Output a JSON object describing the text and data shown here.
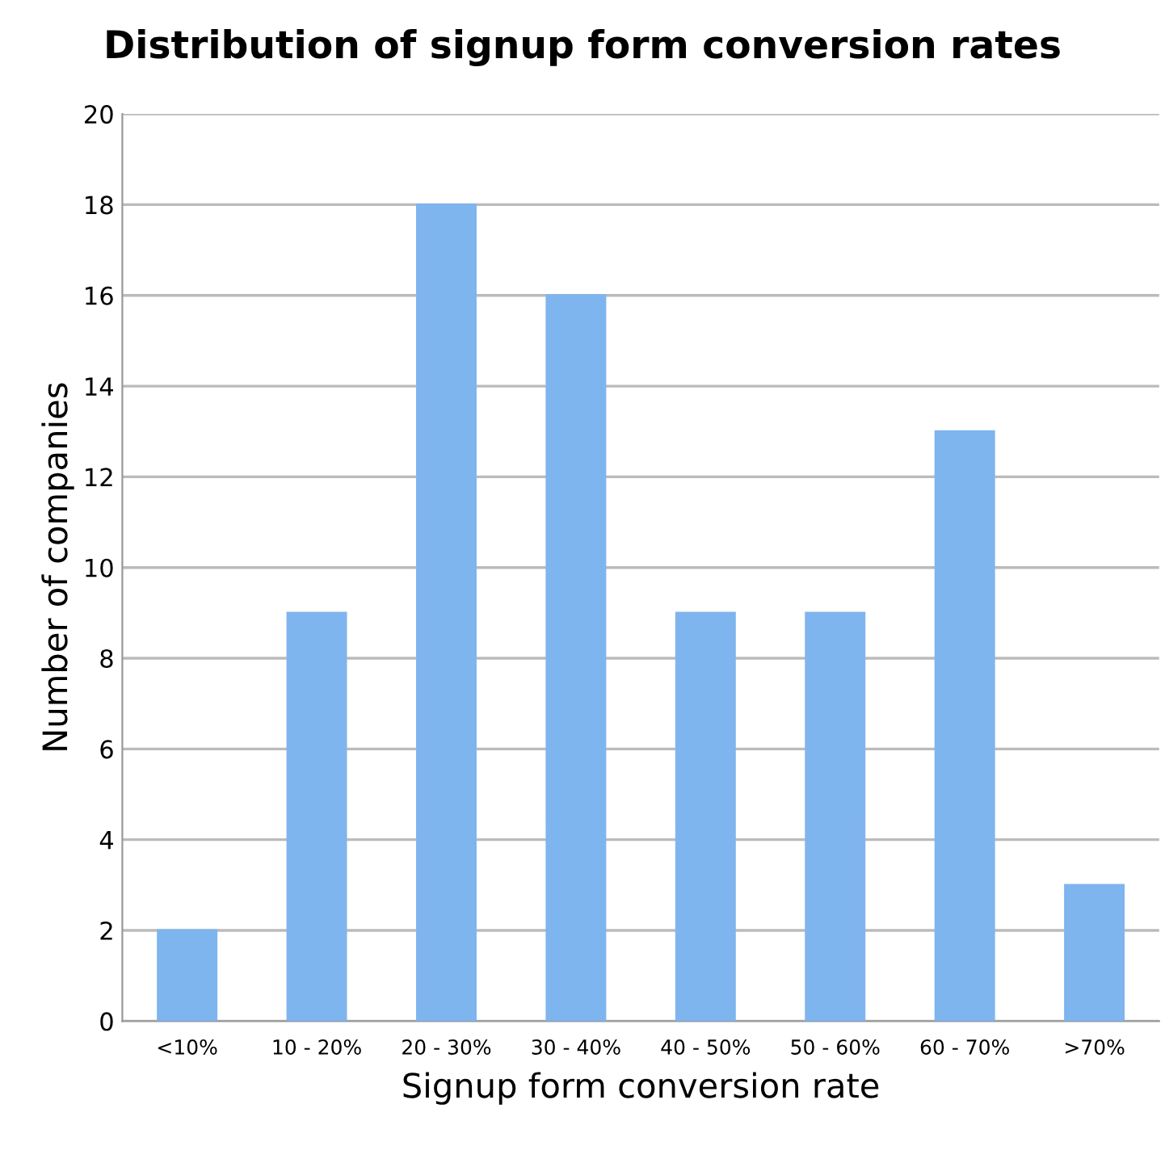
{
  "chart_data": {
    "type": "bar",
    "title": "Distribution of signup form conversion rates",
    "xlabel": "Signup form conversion rate",
    "ylabel": "Number of companies",
    "categories": [
      "<10%",
      "10 - 20%",
      "20 - 30%",
      "30 - 40%",
      "40 - 50%",
      "50 - 60%",
      "60 - 70%",
      ">70%"
    ],
    "values": [
      2,
      9,
      18,
      16,
      9,
      9,
      13,
      3
    ],
    "color": "#7fb5ee",
    "ylim": [
      0,
      20
    ],
    "yticks": [
      0,
      2,
      4,
      6,
      8,
      10,
      12,
      14,
      16,
      18,
      20
    ],
    "grid": "y",
    "legend": false
  }
}
